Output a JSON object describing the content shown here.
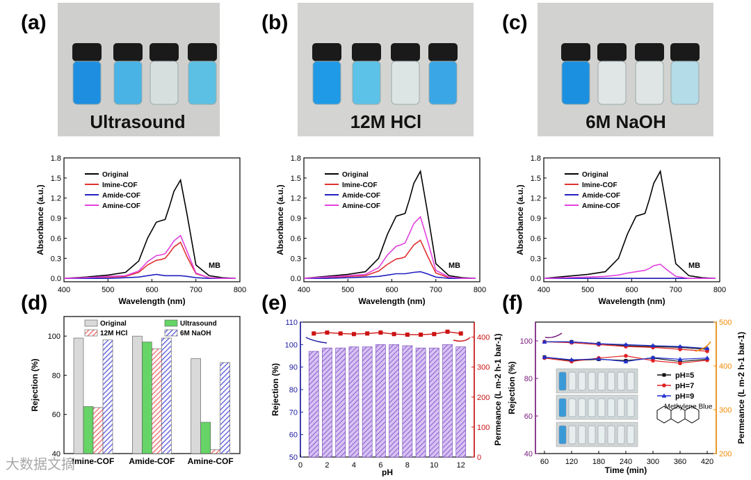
{
  "panels": {
    "a": {
      "tag": "(a)",
      "caption": "Ultrasound"
    },
    "b": {
      "tag": "(b)",
      "caption": "12M HCl"
    },
    "c": {
      "tag": "(c)",
      "caption": "6M NaOH"
    },
    "d": {
      "tag": "(d)"
    },
    "e": {
      "tag": "(e)"
    },
    "f": {
      "tag": "(f)"
    }
  },
  "watermark": "大数据文摘",
  "colors": {
    "original": "#000000",
    "imine": "#e03030",
    "amide": "#2020c0",
    "amine": "#e040e0",
    "bar_original": "#d9d9d9",
    "bar_ultrasound": "#66d466",
    "bar_hcl": "#f07a7a",
    "bar_naoh": "#6a6ae0",
    "bar_e": "#b48ae8",
    "perm_axis": "#cc1111",
    "rej_axis": "#1a1aa0",
    "orange_axis": "#f08a00"
  },
  "chart_data": [
    {
      "id": "uvvis_a",
      "type": "line",
      "title": "",
      "xlabel": "Wavelength (nm)",
      "ylabel": "Absorbance (a.u.)",
      "xlim": [
        400,
        800
      ],
      "ylim": [
        -0.05,
        1.8
      ],
      "xticks": [
        "400",
        "500",
        "600",
        "700",
        "800"
      ],
      "yticks": [
        "0.0",
        "0.3",
        "0.6",
        "0.9",
        "1.2",
        "1.5",
        "1.8"
      ],
      "annotation": "MB",
      "legend": [
        "Original",
        "Imine-COF",
        "Amide-COF",
        "Amine-COF"
      ],
      "x": [
        400,
        450,
        500,
        540,
        570,
        590,
        610,
        620,
        630,
        640,
        650,
        665,
        680,
        700,
        730,
        760,
        790
      ],
      "series": [
        {
          "name": "Original",
          "values": [
            0.0,
            0.02,
            0.05,
            0.09,
            0.26,
            0.6,
            0.84,
            0.86,
            0.88,
            1.08,
            1.3,
            1.47,
            0.95,
            0.2,
            0.04,
            0.01,
            0.0
          ]
        },
        {
          "name": "Imine-COF",
          "values": [
            0.0,
            0.01,
            0.02,
            0.03,
            0.09,
            0.2,
            0.27,
            0.28,
            0.3,
            0.38,
            0.47,
            0.54,
            0.32,
            0.07,
            0.01,
            0.0,
            0.0
          ]
        },
        {
          "name": "Amide-COF",
          "values": [
            0.0,
            0.0,
            0.0,
            0.01,
            0.02,
            0.04,
            0.06,
            0.05,
            0.04,
            0.04,
            0.04,
            0.04,
            0.03,
            0.01,
            0.0,
            0.0,
            0.0
          ]
        },
        {
          "name": "Amine-COF",
          "values": [
            0.0,
            0.01,
            0.03,
            0.04,
            0.11,
            0.25,
            0.34,
            0.35,
            0.37,
            0.46,
            0.56,
            0.64,
            0.4,
            0.08,
            0.01,
            0.0,
            0.0
          ]
        }
      ]
    },
    {
      "id": "uvvis_b",
      "type": "line",
      "title": "",
      "xlabel": "Wavelength (nm)",
      "ylabel": "Absorbance (a.u.)",
      "xlim": [
        400,
        800
      ],
      "ylim": [
        -0.05,
        1.8
      ],
      "xticks": [
        "400",
        "500",
        "600",
        "700",
        "800"
      ],
      "yticks": [
        "0.0",
        "0.3",
        "0.6",
        "0.9",
        "1.2",
        "1.5",
        "1.8"
      ],
      "annotation": "MB",
      "legend": [
        "Original",
        "Imine-COF",
        "Amide-COF",
        "Amine-COF"
      ],
      "x": [
        400,
        450,
        500,
        540,
        570,
        590,
        610,
        620,
        630,
        640,
        650,
        665,
        680,
        700,
        730,
        760,
        790
      ],
      "series": [
        {
          "name": "Original",
          "values": [
            0.0,
            0.03,
            0.06,
            0.1,
            0.3,
            0.66,
            0.93,
            0.95,
            0.97,
            1.18,
            1.42,
            1.6,
            1.03,
            0.22,
            0.04,
            0.01,
            0.0
          ]
        },
        {
          "name": "Imine-COF",
          "values": [
            0.0,
            0.01,
            0.03,
            0.04,
            0.11,
            0.21,
            0.29,
            0.3,
            0.32,
            0.41,
            0.5,
            0.57,
            0.35,
            0.08,
            0.01,
            0.0,
            0.0
          ]
        },
        {
          "name": "Amide-COF",
          "values": [
            0.0,
            0.0,
            0.01,
            0.02,
            0.03,
            0.05,
            0.07,
            0.07,
            0.07,
            0.08,
            0.09,
            0.1,
            0.07,
            0.02,
            0.0,
            0.0,
            0.0
          ]
        },
        {
          "name": "Amine-COF",
          "values": [
            0.0,
            0.02,
            0.04,
            0.06,
            0.16,
            0.35,
            0.48,
            0.5,
            0.53,
            0.67,
            0.82,
            0.92,
            0.59,
            0.12,
            0.02,
            0.0,
            0.0
          ]
        }
      ]
    },
    {
      "id": "uvvis_c",
      "type": "line",
      "title": "",
      "xlabel": "Wavelength (nm)",
      "ylabel": "Absorbance (a.u.)",
      "xlim": [
        400,
        800
      ],
      "ylim": [
        -0.05,
        1.8
      ],
      "xticks": [
        "400",
        "500",
        "600",
        "700",
        "800"
      ],
      "yticks": [
        "0.0",
        "0.3",
        "0.6",
        "0.9",
        "1.2",
        "1.5",
        "1.8"
      ],
      "annotation": "MB",
      "legend": [
        "Original",
        "Imine-COF",
        "Amide-COF",
        "Amine-COF"
      ],
      "x": [
        400,
        450,
        500,
        540,
        570,
        590,
        610,
        620,
        630,
        640,
        650,
        665,
        680,
        700,
        730,
        760,
        790
      ],
      "series": [
        {
          "name": "Original",
          "values": [
            0.0,
            0.03,
            0.06,
            0.1,
            0.3,
            0.66,
            0.93,
            0.95,
            0.97,
            1.18,
            1.42,
            1.6,
            1.03,
            0.22,
            0.04,
            0.01,
            0.0
          ]
        },
        {
          "name": "Imine-COF",
          "values": [
            0.0,
            0.0,
            0.0,
            0.0,
            0.0,
            0.0,
            0.0,
            0.0,
            0.0,
            0.0,
            0.0,
            0.0,
            0.0,
            0.0,
            0.0,
            0.0,
            0.0
          ]
        },
        {
          "name": "Amide-COF",
          "values": [
            0.0,
            0.0,
            0.0,
            0.0,
            0.0,
            0.0,
            0.0,
            0.0,
            0.0,
            0.0,
            0.0,
            0.0,
            0.0,
            0.0,
            0.0,
            0.0,
            0.0
          ]
        },
        {
          "name": "Amine-COF",
          "values": [
            0.0,
            0.01,
            0.02,
            0.03,
            0.05,
            0.08,
            0.1,
            0.11,
            0.12,
            0.15,
            0.19,
            0.21,
            0.13,
            0.03,
            0.0,
            0.0,
            0.0
          ]
        }
      ]
    },
    {
      "id": "rejection_bars",
      "type": "bar",
      "title": "",
      "xlabel": "",
      "ylabel": "Rejection (%)",
      "ylim": [
        40,
        110
      ],
      "yticks": [
        "40",
        "60",
        "80",
        "100"
      ],
      "categories": [
        "Imine-COF",
        "Amide-COF",
        "Amine-COF"
      ],
      "series": [
        {
          "name": "Original",
          "values": [
            99,
            100,
            88.5
          ]
        },
        {
          "name": "Ultrasound",
          "values": [
            64,
            97,
            56
          ]
        },
        {
          "name": "12M HCl",
          "values": [
            63.5,
            93.5,
            42
          ]
        },
        {
          "name": "6M NaOH",
          "values": [
            98,
            99,
            86.5
          ]
        }
      ]
    },
    {
      "id": "ph_bars",
      "type": "bar",
      "title": "",
      "xlabel": "pH",
      "ylabel": "Rejection (%)",
      "y2label": "Permeance (L m-2 h-1 bar-1)",
      "ylim": [
        50,
        110
      ],
      "y2lim": [
        0,
        450
      ],
      "xlim": [
        0,
        13
      ],
      "xticks": [
        "0",
        "2",
        "4",
        "6",
        "8",
        "10",
        "12"
      ],
      "yticks": [
        "50",
        "60",
        "70",
        "80",
        "90",
        "100",
        "110"
      ],
      "y2ticks": [
        "0",
        "100",
        "200",
        "300",
        "400"
      ],
      "x": [
        1,
        2,
        3,
        4,
        5,
        6,
        7,
        8,
        9,
        10,
        11,
        12
      ],
      "series": [
        {
          "name": "Rejection",
          "values": [
            97,
            98.5,
            98.5,
            99,
            99,
            100,
            100,
            99.5,
            98.5,
            98.5,
            100,
            99
          ]
        },
        {
          "name": "Permeance",
          "values": [
            412,
            415,
            412,
            410,
            412,
            415,
            410,
            408,
            408,
            410,
            418,
            412
          ]
        }
      ]
    },
    {
      "id": "time_stability",
      "type": "line",
      "title": "",
      "xlabel": "Time (min)",
      "ylabel": "Rejection (%)",
      "y2label": "Permeance (L m-2 h-1 bar-1)",
      "xlim": [
        40,
        440
      ],
      "ylim": [
        40,
        110
      ],
      "y2lim": [
        200,
        500
      ],
      "xticks": [
        "60",
        "120",
        "180",
        "240",
        "300",
        "360",
        "420"
      ],
      "yticks": [
        "40",
        "60",
        "80",
        "100"
      ],
      "y2ticks": [
        "200",
        "300",
        "400",
        "500"
      ],
      "x": [
        60,
        120,
        180,
        240,
        300,
        360,
        420
      ],
      "legend": [
        "pH=5",
        "pH=7",
        "pH=9"
      ],
      "inset_label": "Methylene Blue",
      "series": [
        {
          "name": "pH=5 rejection",
          "values": [
            99.5,
            99.5,
            98.5,
            97.5,
            97,
            96.5,
            95.5
          ]
        },
        {
          "name": "pH=7 rejection",
          "values": [
            99.5,
            99,
            98,
            97,
            96.5,
            95.5,
            94.5
          ]
        },
        {
          "name": "pH=9 rejection",
          "values": [
            99.5,
            99.5,
            98.5,
            98,
            97.5,
            97,
            96
          ]
        },
        {
          "name": "pH=5 permeance",
          "values": [
            420,
            412,
            415,
            412,
            418,
            410,
            415
          ]
        },
        {
          "name": "pH=7 permeance",
          "values": [
            418,
            410,
            418,
            423,
            412,
            406,
            413
          ]
        },
        {
          "name": "pH=9 permeance",
          "values": [
            420,
            414,
            416,
            410,
            419,
            415,
            418
          ]
        }
      ]
    }
  ]
}
